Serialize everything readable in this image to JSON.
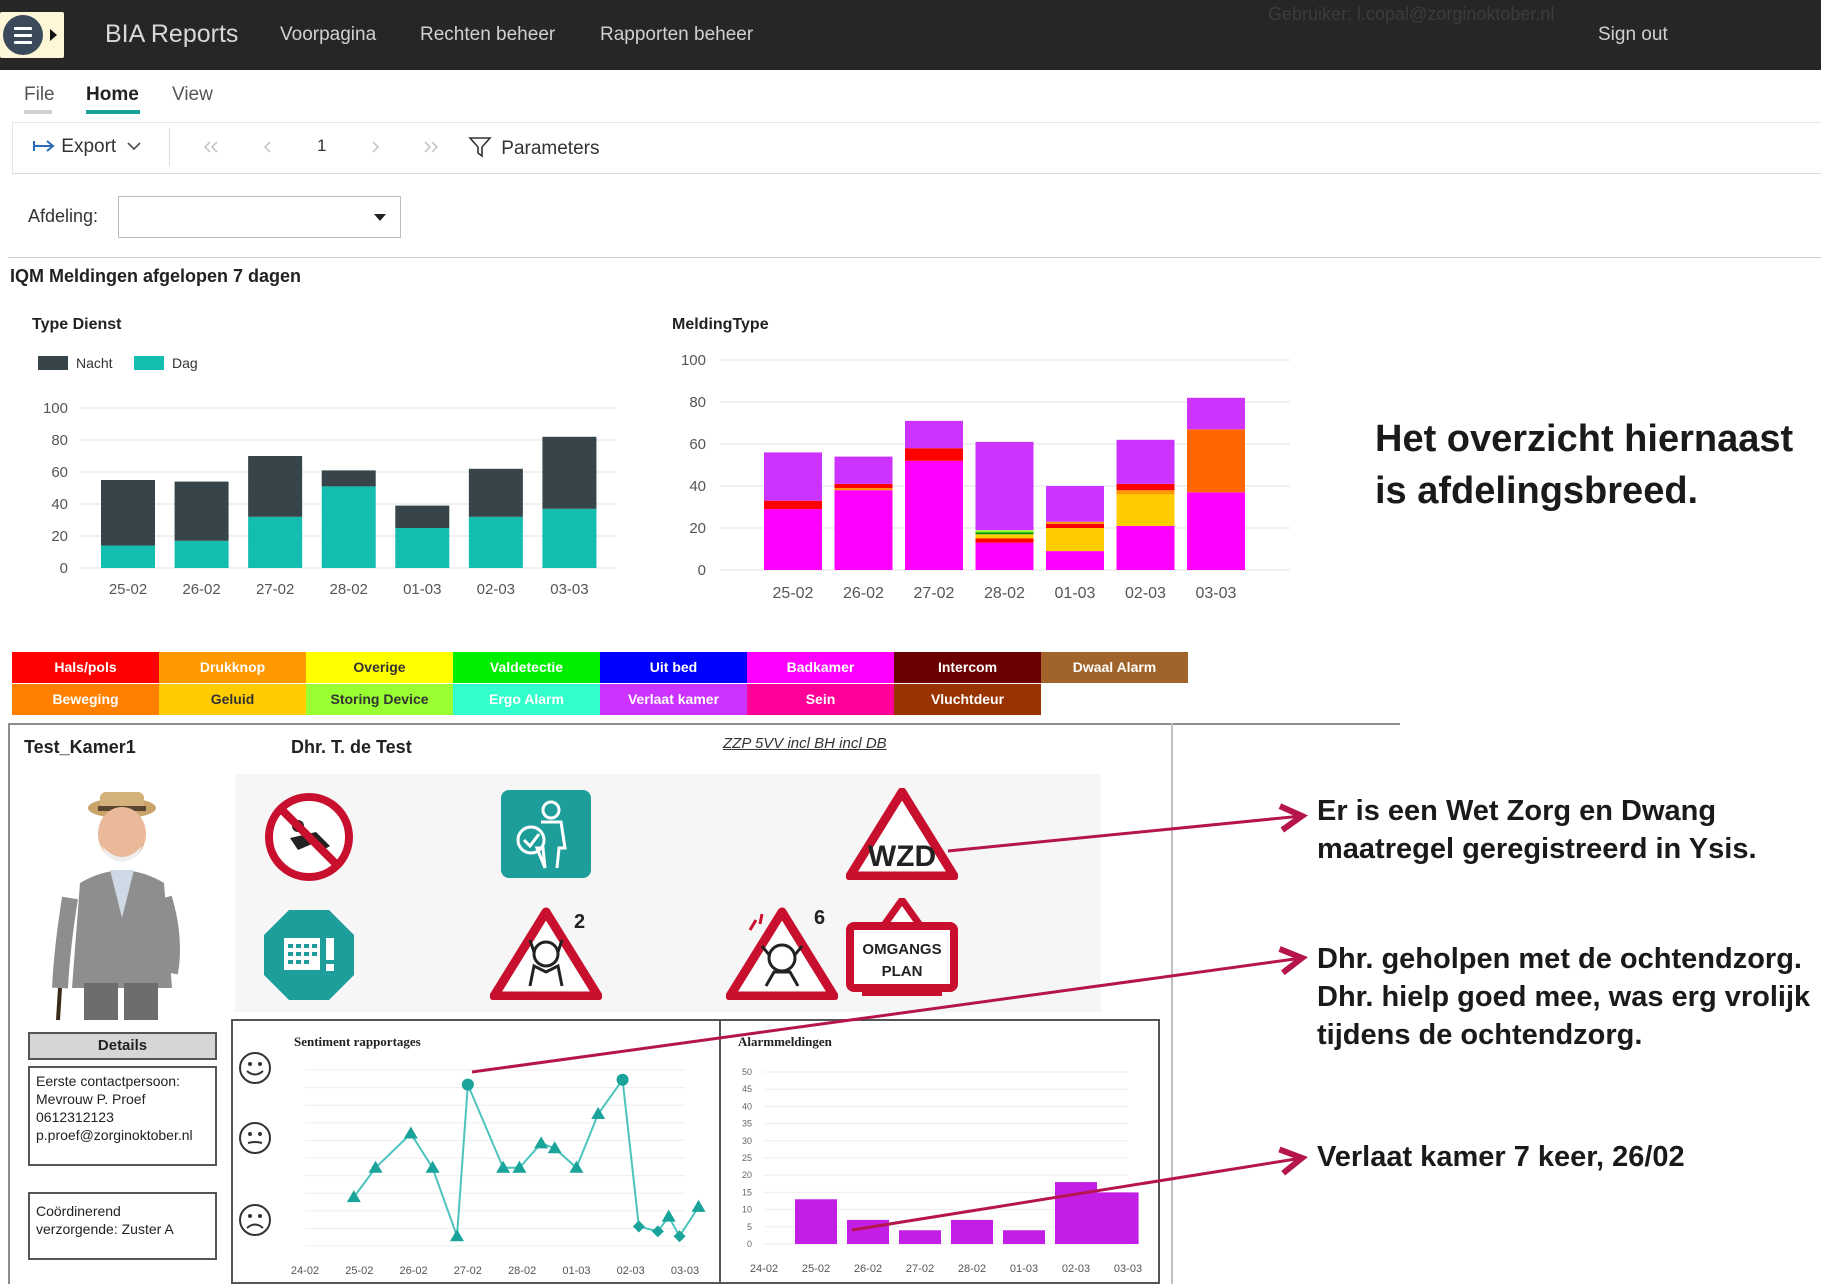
{
  "nav": {
    "brand": "BIA Reports",
    "links": [
      "Voorpagina",
      "Rechten beheer",
      "Rapporten beheer"
    ],
    "user": "Gebruiker: l.copal@zorginoktober.nl",
    "signout": "Sign out"
  },
  "ribbon": {
    "tabs": [
      "File",
      "Home",
      "View"
    ],
    "active_tab": "Home",
    "export_label": "Export",
    "page_number": "1",
    "parameters_label": "Parameters"
  },
  "params": {
    "afdeling_label": "Afdeling:",
    "afdeling_value": ""
  },
  "section_title": "IQM Meldingen afgelopen 7 dagen",
  "colors": {
    "nacht": "#37444a",
    "dag": "#13bdb0",
    "accent_arrow": "#b5154c",
    "hals_pols": "#ff0000",
    "drukknop": "#ff9900",
    "overige": "#ffff00",
    "valdetectie": "#00ee00",
    "uit_bed": "#0000ff",
    "badkamer": "#ff00ff",
    "intercom": "#6b0000",
    "dwaal_alarm": "#a0642a",
    "beweging": "#ff7f00",
    "geluid": "#ffcc00",
    "storing_device": "#99ff33",
    "ergo_alarm": "#33ffcc",
    "verlaat_kamer": "#cc33ff",
    "sein": "#ff0099",
    "vluchtdeur": "#993300"
  },
  "chart_data": [
    {
      "type": "bar",
      "title": "Type Dienst",
      "stacked": true,
      "categories": [
        "25-02",
        "26-02",
        "27-02",
        "28-02",
        "01-03",
        "02-03",
        "03-03"
      ],
      "series": [
        {
          "name": "Dag",
          "values": [
            14,
            17,
            32,
            51,
            25,
            32,
            37
          ]
        },
        {
          "name": "Nacht",
          "values": [
            41,
            37,
            38,
            10,
            14,
            30,
            45
          ]
        }
      ],
      "ylim": [
        0,
        100
      ],
      "yticks": [
        0,
        20,
        40,
        60,
        80,
        100
      ],
      "legend": "top-left",
      "grid": true
    },
    {
      "type": "bar",
      "title": "MeldingType",
      "stacked": true,
      "categories": [
        "25-02",
        "26-02",
        "27-02",
        "28-02",
        "01-03",
        "02-03",
        "03-03"
      ],
      "stacks": [
        [
          {
            "c": "#ff00ff",
            "v": 29
          },
          {
            "c": "#ff0000",
            "v": 4
          },
          {
            "c": "#cc33ff",
            "v": 23
          }
        ],
        [
          {
            "c": "#ff00ff",
            "v": 38
          },
          {
            "c": "#ff9900",
            "v": 1
          },
          {
            "c": "#ff0000",
            "v": 2
          },
          {
            "c": "#cc33ff",
            "v": 13
          }
        ],
        [
          {
            "c": "#ff00ff",
            "v": 52
          },
          {
            "c": "#ff0000",
            "v": 6
          },
          {
            "c": "#cc33ff",
            "v": 13
          }
        ],
        [
          {
            "c": "#ff00ff",
            "v": 13
          },
          {
            "c": "#ff0000",
            "v": 2
          },
          {
            "c": "#ffcc00",
            "v": 2
          },
          {
            "c": "#009900",
            "v": 1
          },
          {
            "c": "#99ff33",
            "v": 1
          },
          {
            "c": "#cc33ff",
            "v": 42
          }
        ],
        [
          {
            "c": "#ff00ff",
            "v": 9
          },
          {
            "c": "#ffcc00",
            "v": 11
          },
          {
            "c": "#ff0000",
            "v": 2
          },
          {
            "c": "#ff9900",
            "v": 1
          },
          {
            "c": "#cc33ff",
            "v": 17
          }
        ],
        [
          {
            "c": "#ff00ff",
            "v": 21
          },
          {
            "c": "#ffcc00",
            "v": 15
          },
          {
            "c": "#ff9900",
            "v": 2
          },
          {
            "c": "#ff0000",
            "v": 3
          },
          {
            "c": "#cc33ff",
            "v": 21
          }
        ],
        [
          {
            "c": "#ff00ff",
            "v": 37
          },
          {
            "c": "#ff6600",
            "v": 30
          },
          {
            "c": "#cc33ff",
            "v": 15
          }
        ]
      ],
      "ylim": [
        0,
        100
      ],
      "yticks": [
        0,
        20,
        40,
        60,
        80,
        100
      ],
      "grid": true
    },
    {
      "type": "line",
      "title": "Sentiment rapportages",
      "categories": [
        "24-02",
        "25-02",
        "26-02",
        "27-02",
        "28-02",
        "01-03",
        "02-03",
        "03-03"
      ],
      "points": [
        [
          0.9,
          1
        ],
        [
          1.3,
          1.6
        ],
        [
          1.95,
          2.3
        ],
        [
          2.35,
          1.6
        ],
        [
          2.8,
          0.2
        ],
        [
          3.0,
          3.3
        ],
        [
          3.65,
          1.6
        ],
        [
          3.95,
          1.6
        ],
        [
          4.35,
          2.1
        ],
        [
          4.6,
          2.0
        ],
        [
          5.0,
          1.6
        ],
        [
          5.4,
          2.7
        ],
        [
          5.85,
          3.4
        ],
        [
          6.15,
          0.4
        ],
        [
          6.5,
          0.3
        ],
        [
          6.7,
          0.6
        ],
        [
          6.9,
          0.2
        ],
        [
          7.25,
          0.8
        ]
      ],
      "highlight_index": 5,
      "ylim": [
        0,
        3.6
      ]
    },
    {
      "type": "bar",
      "title": "Alarmmeldingen",
      "categories": [
        "24-02",
        "25-02",
        "26-02",
        "27-02",
        "28-02",
        "01-03",
        "02-03",
        "03-03"
      ],
      "bars": [
        {
          "x": 1,
          "v": 13
        },
        {
          "x": 2,
          "v": 7
        },
        {
          "x": 3,
          "v": 4
        },
        {
          "x": 4,
          "v": 7
        },
        {
          "x": 5,
          "v": 4
        },
        {
          "x": 6,
          "v": 18
        },
        {
          "x": 6.8,
          "v": 15
        }
      ],
      "ylim": [
        0,
        50
      ],
      "yticks": [
        0,
        5,
        10,
        15,
        20,
        25,
        30,
        35,
        40,
        45,
        50
      ]
    }
  ],
  "legend_table": [
    {
      "label": "Hals/pols",
      "bg": "#ff0000",
      "fg": "#ffffff"
    },
    {
      "label": "Drukknop",
      "bg": "#ff9900",
      "fg": "#ffffff"
    },
    {
      "label": "Overige",
      "bg": "#ffff00",
      "fg": "#333333"
    },
    {
      "label": "Valdetectie",
      "bg": "#00ee00",
      "fg": "#ffffff"
    },
    {
      "label": "Uit bed",
      "bg": "#0000ff",
      "fg": "#ffffff"
    },
    {
      "label": "Badkamer",
      "bg": "#ff00ff",
      "fg": "#ffffff"
    },
    {
      "label": "Intercom",
      "bg": "#6b0000",
      "fg": "#ffffff"
    },
    {
      "label": "Dwaal Alarm",
      "bg": "#a0642a",
      "fg": "#ffffff"
    },
    {
      "label": "Beweging",
      "bg": "#ff7f00",
      "fg": "#ffffff"
    },
    {
      "label": "Geluid",
      "bg": "#ffcc00",
      "fg": "#333333"
    },
    {
      "label": "Storing Device",
      "bg": "#99ff33",
      "fg": "#333333"
    },
    {
      "label": "Ergo Alarm",
      "bg": "#33ffcc",
      "fg": "#ffffff"
    },
    {
      "label": "Verlaat kamer",
      "bg": "#cc33ff",
      "fg": "#ffffff"
    },
    {
      "label": "Sein",
      "bg": "#ff0099",
      "fg": "#ffffff"
    },
    {
      "label": "Vluchtdeur",
      "bg": "#993300",
      "fg": "#ffffff"
    }
  ],
  "patient": {
    "room": "Test_Kamer1",
    "name": "Dhr. T. de Test",
    "zzp": "ZZP 5VV incl BH incl DB",
    "details_label": "Details",
    "contact_lines": [
      "Eerste contactpersoon:",
      "Mevrouw P. Proef",
      "0612312123",
      "p.proef@zorginoktober.nl"
    ],
    "caregiver_lines": [
      "Coördinerend",
      "verzorgende: Zuster A"
    ],
    "icons": [
      "no-crawling-icon",
      "person-check-icon",
      "wzd-warning-icon",
      "calendar-alert-icon",
      "distress-warning-icon",
      "agitation-warning-icon",
      "omgangsplan-icon"
    ],
    "icon_counts": {
      "distress": "2",
      "agitation": "6"
    },
    "wzd_text": "WZD",
    "omgangsplan_lines": [
      "OMGANGS",
      "PLAN"
    ]
  },
  "annotations": {
    "big_note_lines": [
      "Het overzicht hiernaast",
      "is afdelingsbreed."
    ],
    "note1_lines": [
      "Er is een Wet Zorg en Dwang",
      "maatregel geregistreerd in Ysis."
    ],
    "note2_lines": [
      "Dhr. geholpen met de ochtendzorg.",
      "Dhr. hielp goed mee, was erg vrolijk",
      "tijdens de ochtendzorg."
    ],
    "note3_lines": [
      "Verlaat kamer 7 keer, 26/02"
    ]
  }
}
